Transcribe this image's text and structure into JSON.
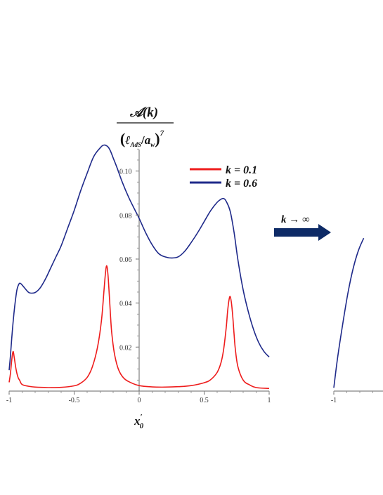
{
  "chart_data": [
    {
      "type": "line",
      "ylabel_numerator": "𝒜(k)",
      "ylabel_denominator": "(ℓAdS/aw)",
      "ylabel_den_sub_1": "AdS",
      "ylabel_den_sub_2": "w",
      "ylabel_exponent": "7",
      "xlabel": "x",
      "xlabel_prime": "′",
      "xlabel_sub": "0",
      "xlim": [
        -1,
        1
      ],
      "ylim": [
        0,
        0.112
      ],
      "xticks": [
        {
          "value": -1,
          "label": "-1"
        },
        {
          "value": -0.5,
          "label": "-0.5"
        },
        {
          "value": 0,
          "label": "0"
        },
        {
          "value": 0.5,
          "label": "0.5"
        },
        {
          "value": 1,
          "label": "1"
        }
      ],
      "yticks": [
        {
          "value": 0.02,
          "label": "0.02"
        },
        {
          "value": 0.04,
          "label": "0.04"
        },
        {
          "value": 0.06,
          "label": "0.06"
        },
        {
          "value": 0.08,
          "label": "0.08"
        },
        {
          "value": 0.1,
          "label": "0.10"
        }
      ],
      "grid": false,
      "legend_position": "top-right",
      "series": [
        {
          "name": "k = 0.1",
          "color": "#ee1c1c",
          "x": [
            -1.0,
            -0.99,
            -0.98,
            -0.97,
            -0.96,
            -0.95,
            -0.94,
            -0.93,
            -0.92,
            -0.9,
            -0.85,
            -0.8,
            -0.7,
            -0.6,
            -0.5,
            -0.45,
            -0.4,
            -0.36,
            -0.32,
            -0.29,
            -0.27,
            -0.26,
            -0.25,
            -0.24,
            -0.23,
            -0.22,
            -0.21,
            -0.19,
            -0.16,
            -0.12,
            -0.07,
            0.0,
            0.1,
            0.2,
            0.3,
            0.4,
            0.5,
            0.55,
            0.6,
            0.63,
            0.65,
            0.67,
            0.68,
            0.69,
            0.7,
            0.71,
            0.72,
            0.73,
            0.74,
            0.76,
            0.8,
            0.85,
            0.9,
            1.0
          ],
          "y": [
            0.004,
            0.008,
            0.014,
            0.018,
            0.015,
            0.011,
            0.008,
            0.006,
            0.005,
            0.003,
            0.0022,
            0.0018,
            0.0016,
            0.0017,
            0.0024,
            0.0036,
            0.0062,
            0.011,
            0.02,
            0.032,
            0.046,
            0.053,
            0.057,
            0.053,
            0.044,
            0.034,
            0.026,
            0.017,
            0.01,
            0.006,
            0.004,
            0.0025,
            0.0019,
            0.0018,
            0.002,
            0.0025,
            0.0038,
            0.0052,
            0.0085,
            0.013,
            0.019,
            0.029,
            0.036,
            0.041,
            0.043,
            0.04,
            0.034,
            0.026,
            0.019,
            0.011,
            0.005,
            0.0028,
            0.0016,
            0.0012
          ]
        },
        {
          "name": "k = 0.6",
          "color": "#1f2a8a",
          "x": [
            -1.0,
            -0.99,
            -0.98,
            -0.97,
            -0.96,
            -0.95,
            -0.94,
            -0.93,
            -0.92,
            -0.91,
            -0.9,
            -0.88,
            -0.86,
            -0.84,
            -0.8,
            -0.76,
            -0.72,
            -0.68,
            -0.64,
            -0.6,
            -0.55,
            -0.5,
            -0.45,
            -0.4,
            -0.35,
            -0.3,
            -0.27,
            -0.24,
            -0.22,
            -0.2,
            -0.17,
            -0.13,
            -0.08,
            -0.03,
            0.0,
            0.05,
            0.1,
            0.15,
            0.2,
            0.25,
            0.3,
            0.35,
            0.4,
            0.45,
            0.5,
            0.55,
            0.6,
            0.63,
            0.65,
            0.67,
            0.7,
            0.73,
            0.76,
            0.8,
            0.84,
            0.88,
            0.92,
            0.96,
            1.0
          ],
          "y": [
            0.0095,
            0.016,
            0.024,
            0.031,
            0.037,
            0.042,
            0.046,
            0.048,
            0.049,
            0.0488,
            0.0482,
            0.0468,
            0.0454,
            0.0446,
            0.0448,
            0.047,
            0.051,
            0.056,
            0.061,
            0.066,
            0.074,
            0.082,
            0.091,
            0.099,
            0.1065,
            0.1105,
            0.1118,
            0.111,
            0.109,
            0.106,
            0.1015,
            0.095,
            0.088,
            0.082,
            0.0785,
            0.072,
            0.0665,
            0.0625,
            0.061,
            0.0605,
            0.061,
            0.0635,
            0.0675,
            0.072,
            0.077,
            0.082,
            0.0858,
            0.0872,
            0.0875,
            0.0862,
            0.0818,
            0.0722,
            0.0595,
            0.046,
            0.036,
            0.028,
            0.022,
            0.018,
            0.0155
          ]
        }
      ]
    },
    {
      "type": "line",
      "xlim": [
        -1,
        1
      ],
      "ylim": [
        0,
        0.112
      ],
      "xticks": [
        {
          "value": -1,
          "label": "-1"
        }
      ],
      "series": [
        {
          "name": "",
          "color": "#1f2a8a",
          "x": [
            -1.0,
            -0.97,
            -0.93,
            -0.89,
            -0.85,
            -0.81,
            -0.77
          ],
          "y": [
            0.0015,
            0.0155,
            0.031,
            0.045,
            0.056,
            0.064,
            0.0695
          ]
        }
      ]
    }
  ],
  "annotation": {
    "text": "k → ∞",
    "arrow_color": "#0d2a66"
  }
}
